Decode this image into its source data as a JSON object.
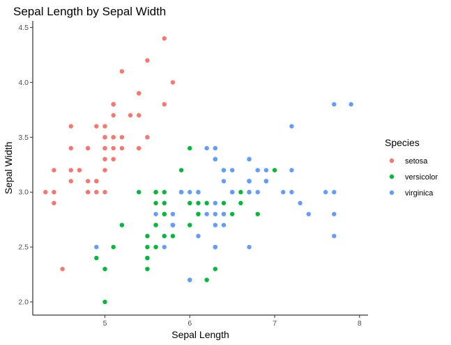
{
  "chart_data": {
    "type": "scatter",
    "title": "Sepal Length by Sepal Width",
    "xlabel": "Sepal Length",
    "ylabel": "Sepal Width",
    "xlim": [
      4.15,
      8.1
    ],
    "ylim": [
      1.88,
      4.56
    ],
    "x_ticks": [
      "5",
      "6",
      "7",
      "8"
    ],
    "y_ticks": [
      "2.0",
      "2.5",
      "3.0",
      "3.5",
      "4.0",
      "4.5"
    ],
    "grid": false,
    "legend": {
      "title": "Species",
      "position": "right"
    },
    "series": [
      {
        "name": "setosa",
        "color": "#F8766D",
        "points": [
          [
            5.1,
            3.5
          ],
          [
            4.9,
            3.0
          ],
          [
            4.7,
            3.2
          ],
          [
            4.6,
            3.1
          ],
          [
            5.0,
            3.6
          ],
          [
            5.4,
            3.9
          ],
          [
            4.6,
            3.4
          ],
          [
            5.0,
            3.4
          ],
          [
            4.4,
            2.9
          ],
          [
            4.9,
            3.1
          ],
          [
            5.4,
            3.7
          ],
          [
            4.8,
            3.4
          ],
          [
            4.8,
            3.0
          ],
          [
            4.3,
            3.0
          ],
          [
            5.8,
            4.0
          ],
          [
            5.7,
            4.4
          ],
          [
            5.4,
            3.9
          ],
          [
            5.1,
            3.5
          ],
          [
            5.7,
            3.8
          ],
          [
            5.1,
            3.8
          ],
          [
            5.4,
            3.4
          ],
          [
            5.1,
            3.7
          ],
          [
            4.6,
            3.6
          ],
          [
            5.1,
            3.3
          ],
          [
            4.8,
            3.4
          ],
          [
            5.0,
            3.0
          ],
          [
            5.0,
            3.4
          ],
          [
            5.2,
            3.5
          ],
          [
            5.2,
            3.4
          ],
          [
            4.7,
            3.2
          ],
          [
            4.8,
            3.1
          ],
          [
            5.4,
            3.4
          ],
          [
            5.2,
            4.1
          ],
          [
            5.5,
            4.2
          ],
          [
            4.9,
            3.1
          ],
          [
            5.0,
            3.2
          ],
          [
            5.5,
            3.5
          ],
          [
            4.9,
            3.6
          ],
          [
            4.4,
            3.0
          ],
          [
            5.1,
            3.4
          ],
          [
            5.0,
            3.5
          ],
          [
            4.5,
            2.3
          ],
          [
            4.4,
            3.2
          ],
          [
            5.0,
            3.5
          ],
          [
            5.1,
            3.8
          ],
          [
            4.8,
            3.0
          ],
          [
            5.1,
            3.8
          ],
          [
            4.6,
            3.2
          ],
          [
            5.3,
            3.7
          ],
          [
            5.0,
            3.3
          ]
        ]
      },
      {
        "name": "versicolor",
        "color": "#00BA38",
        "points": [
          [
            7.0,
            3.2
          ],
          [
            6.4,
            3.2
          ],
          [
            6.9,
            3.1
          ],
          [
            5.5,
            2.3
          ],
          [
            6.5,
            2.8
          ],
          [
            5.7,
            2.8
          ],
          [
            6.3,
            3.3
          ],
          [
            4.9,
            2.4
          ],
          [
            6.6,
            2.9
          ],
          [
            5.2,
            2.7
          ],
          [
            5.0,
            2.0
          ],
          [
            5.9,
            3.0
          ],
          [
            6.0,
            2.2
          ],
          [
            6.1,
            2.9
          ],
          [
            5.6,
            2.9
          ],
          [
            6.7,
            3.1
          ],
          [
            5.6,
            3.0
          ],
          [
            5.8,
            2.7
          ],
          [
            6.2,
            2.2
          ],
          [
            5.6,
            2.5
          ],
          [
            5.9,
            3.2
          ],
          [
            6.1,
            2.8
          ],
          [
            6.3,
            2.5
          ],
          [
            6.1,
            2.8
          ],
          [
            6.4,
            2.9
          ],
          [
            6.6,
            3.0
          ],
          [
            6.8,
            2.8
          ],
          [
            6.7,
            3.0
          ],
          [
            6.0,
            2.9
          ],
          [
            5.7,
            2.6
          ],
          [
            5.5,
            2.4
          ],
          [
            5.5,
            2.4
          ],
          [
            5.8,
            2.7
          ],
          [
            6.0,
            2.7
          ],
          [
            5.4,
            3.0
          ],
          [
            6.0,
            3.4
          ],
          [
            6.7,
            3.1
          ],
          [
            6.3,
            2.3
          ],
          [
            5.6,
            3.0
          ],
          [
            5.5,
            2.5
          ],
          [
            5.5,
            2.6
          ],
          [
            6.1,
            3.0
          ],
          [
            5.8,
            2.6
          ],
          [
            5.0,
            2.3
          ],
          [
            5.6,
            2.7
          ],
          [
            5.7,
            3.0
          ],
          [
            5.7,
            2.9
          ],
          [
            6.2,
            2.9
          ],
          [
            5.1,
            2.5
          ],
          [
            5.7,
            2.8
          ]
        ]
      },
      {
        "name": "virginica",
        "color": "#619CFF",
        "points": [
          [
            6.3,
            3.3
          ],
          [
            5.8,
            2.7
          ],
          [
            7.1,
            3.0
          ],
          [
            6.3,
            2.9
          ],
          [
            6.5,
            3.0
          ],
          [
            7.6,
            3.0
          ],
          [
            4.9,
            2.5
          ],
          [
            7.3,
            2.9
          ],
          [
            6.7,
            2.5
          ],
          [
            7.2,
            3.6
          ],
          [
            6.5,
            3.2
          ],
          [
            6.4,
            2.7
          ],
          [
            6.8,
            3.0
          ],
          [
            5.7,
            2.5
          ],
          [
            5.8,
            2.8
          ],
          [
            6.4,
            3.2
          ],
          [
            6.5,
            3.0
          ],
          [
            7.7,
            3.8
          ],
          [
            7.7,
            2.6
          ],
          [
            6.0,
            2.2
          ],
          [
            6.9,
            3.2
          ],
          [
            5.6,
            2.8
          ],
          [
            7.7,
            2.8
          ],
          [
            6.3,
            2.7
          ],
          [
            6.7,
            3.3
          ],
          [
            7.2,
            3.2
          ],
          [
            6.2,
            2.8
          ],
          [
            6.1,
            3.0
          ],
          [
            6.4,
            2.8
          ],
          [
            7.2,
            3.0
          ],
          [
            7.4,
            2.8
          ],
          [
            7.9,
            3.8
          ],
          [
            6.4,
            2.8
          ],
          [
            6.3,
            2.8
          ],
          [
            6.1,
            2.6
          ],
          [
            7.7,
            3.0
          ],
          [
            6.3,
            3.4
          ],
          [
            6.4,
            3.1
          ],
          [
            6.0,
            3.0
          ],
          [
            6.9,
            3.1
          ],
          [
            6.7,
            3.1
          ],
          [
            6.9,
            3.1
          ],
          [
            5.8,
            2.7
          ],
          [
            6.8,
            3.2
          ],
          [
            6.7,
            3.3
          ],
          [
            6.7,
            3.0
          ],
          [
            6.3,
            2.5
          ],
          [
            6.5,
            3.0
          ],
          [
            6.2,
            3.4
          ],
          [
            5.9,
            3.0
          ]
        ]
      }
    ]
  }
}
